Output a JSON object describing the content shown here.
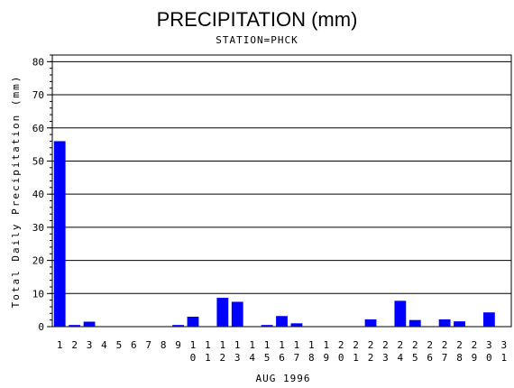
{
  "chart_data": {
    "type": "bar",
    "title": "PRECIPITATION (mm)",
    "subtitle": "STATION=PHCK",
    "xlabel": "AUG 1996",
    "ylabel": "Total Daily Precipitation (mm)",
    "ylim": [
      0,
      82
    ],
    "yticks": [
      0,
      10,
      20,
      30,
      40,
      50,
      60,
      70,
      80
    ],
    "categories": [
      "1",
      "2",
      "3",
      "4",
      "5",
      "6",
      "7",
      "8",
      "9",
      "10",
      "11",
      "12",
      "13",
      "14",
      "15",
      "16",
      "17",
      "18",
      "19",
      "20",
      "21",
      "22",
      "23",
      "24",
      "25",
      "26",
      "27",
      "28",
      "29",
      "30",
      "31"
    ],
    "values": [
      56,
      0.5,
      1.5,
      0,
      0,
      0,
      0,
      0,
      0.5,
      3,
      0,
      8.7,
      7.5,
      0,
      0.5,
      3.2,
      1,
      0,
      0,
      0,
      0,
      2.2,
      0,
      7.8,
      2,
      0,
      2.2,
      1.6,
      0,
      4.3,
      0
    ],
    "bar_color": "#0000ff",
    "grid": true,
    "legend": "none"
  }
}
